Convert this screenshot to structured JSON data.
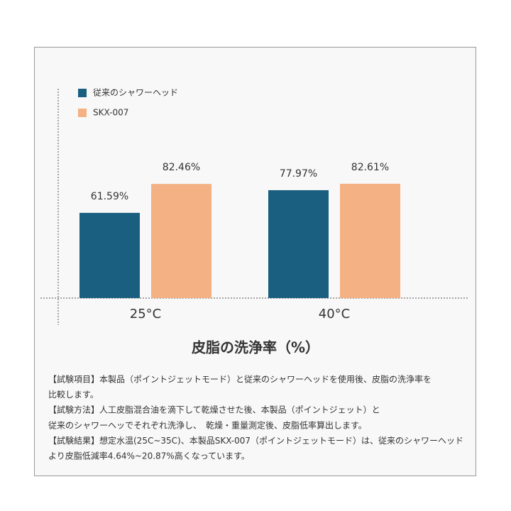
{
  "chart_data": {
    "type": "bar",
    "title": "皮脂の洗浄率（%）",
    "categories": [
      "25°C",
      "40°C"
    ],
    "series": [
      {
        "name": "従来のシャワーヘッド",
        "color": "#1a5f80",
        "values": [
          61.59,
          77.97
        ],
        "value_labels": [
          "61.59%",
          "77.97%"
        ]
      },
      {
        "name": "SKX-007",
        "color": "#f4b183",
        "values": [
          82.46,
          82.61
        ],
        "value_labels": [
          "82.46%",
          "82.61%"
        ]
      }
    ],
    "ylim": [
      0,
      100
    ],
    "legend": "top-left",
    "annotations": [
      "【試験項目】本製品（ポイントジェットモード）と従来のシャワーヘッドを使用後、皮脂の洗浄率を",
      "比較します。",
      "【試験方法】人工皮脂混合油を滴下して乾燥させた後、本製品（ポイントジェット）と",
      "従来のシャワーヘッでそれぞれ洗浄し、　乾燥・重量測定後、皮脂低率算出します。",
      "【試験結果】想定水温(25C~35C)、本製品SKX-007（ポイントジェットモード）は、従来のシャワーヘッド",
      "より皮脂低減率4.64%~20.87%高くなっています。"
    ]
  }
}
